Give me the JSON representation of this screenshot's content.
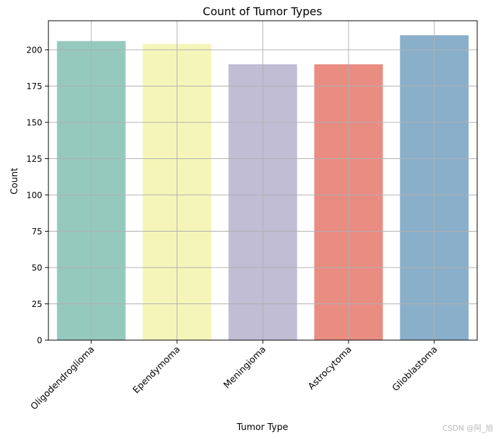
{
  "chart_data": {
    "type": "bar",
    "title": "Count of Tumor Types",
    "xlabel": "Tumor Type",
    "ylabel": "Count",
    "categories": [
      "Oligodendroglioma",
      "Ependymoma",
      "Meningioma",
      "Astrocytoma",
      "Glioblastoma"
    ],
    "values": [
      206,
      204,
      190,
      190,
      210
    ],
    "colors": [
      "#96c9be",
      "#f5f5b9",
      "#c0bdd5",
      "#e98d82",
      "#8aafca"
    ],
    "ylim": [
      0,
      220
    ],
    "yticks": [
      0,
      25,
      50,
      75,
      100,
      125,
      150,
      175,
      200
    ],
    "grid": true,
    "xtick_rotation": 45
  },
  "watermark": "CSDN @阿_旭"
}
